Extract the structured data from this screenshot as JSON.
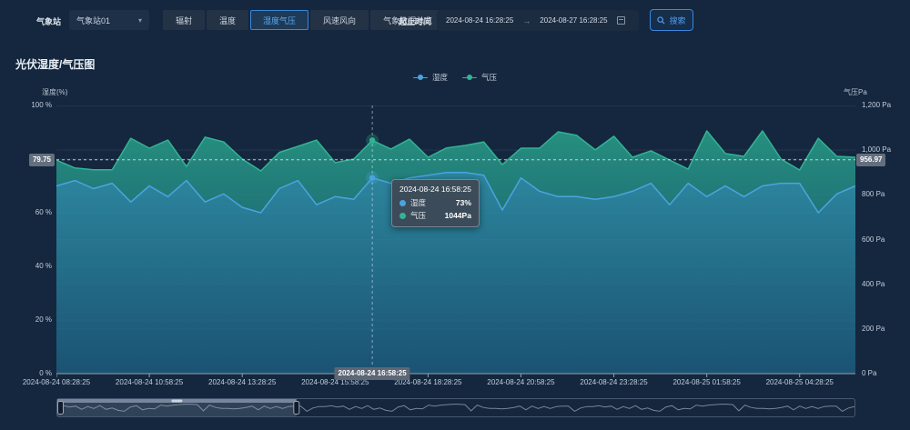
{
  "header": {
    "station_label": "气象站",
    "station_value": "气象站01",
    "nav_buttons": [
      {
        "label": "辐射",
        "active": false
      },
      {
        "label": "温度",
        "active": false
      },
      {
        "label": "湿度气压",
        "active": true
      },
      {
        "label": "风速风向",
        "active": false
      },
      {
        "label": "气象数据总览",
        "active": false
      }
    ],
    "range_label": "起止时间",
    "date_start": "2024-08-24 16:28:25",
    "date_end": "2024-08-27 16:28:25",
    "search_label": "搜索"
  },
  "chart_data": {
    "type": "area",
    "title": "光伏湿度/气压图",
    "x_tick_labels": [
      "2024-08-24 08:28:25",
      "2024-08-24 10:58:25",
      "2024-08-24 13:28:25",
      "2024-08-24 15:58:25",
      "2024-08-24 18:28:25",
      "2024-08-24 20:58:25",
      "2024-08-24 23:28:25",
      "2024-08-25 01:58:25",
      "2024-08-25 04:28:25"
    ],
    "x_tick_indices": [
      0,
      5,
      10,
      15,
      20,
      25,
      30,
      35,
      40
    ],
    "left_axis": {
      "name": "湿度(%)",
      "min": 0,
      "max": 100,
      "tick_values": [
        0,
        20,
        40,
        60,
        80,
        100
      ],
      "tick_labels": [
        "0 %",
        "20 %",
        "40 %",
        "60 %",
        "80 %",
        "100 %"
      ]
    },
    "right_axis": {
      "name": "气压Pa",
      "min": 0,
      "max": 1200,
      "tick_values": [
        0,
        200,
        400,
        600,
        800,
        1000,
        1200
      ],
      "tick_labels": [
        "0 Pa",
        "200 Pa",
        "400 Pa",
        "600 Pa",
        "800 Pa",
        "1,000 Pa",
        "1,200 Pa"
      ]
    },
    "series": [
      {
        "name": "湿度",
        "axis": "left",
        "color": "#4aa4e0",
        "values": [
          70,
          72,
          69,
          71,
          64,
          70,
          66,
          72,
          64,
          67,
          62,
          60,
          69,
          72,
          63,
          66,
          65,
          73,
          71,
          73,
          74,
          75,
          75,
          74,
          61,
          73,
          68,
          66,
          66,
          65,
          66,
          68,
          71,
          63,
          71,
          66,
          70,
          66,
          70,
          71,
          71,
          60,
          67,
          70
        ]
      },
      {
        "name": "气压",
        "axis": "right",
        "color": "#32b394",
        "values": [
          955,
          920,
          912,
          912,
          1053,
          1009,
          1045,
          927,
          1058,
          1037,
          960,
          907,
          990,
          1017,
          1045,
          944,
          960,
          1044,
          1005,
          1049,
          968,
          1010,
          1021,
          1037,
          935,
          1009,
          1009,
          1082,
          1066,
          1001,
          1062,
          968,
          997,
          956,
          915,
          1086,
          985,
          972,
          1086,
          960,
          911,
          1053,
          972,
          968
        ]
      }
    ],
    "tooltip": {
      "title": "2024-08-24 16:58:25",
      "point_index": 17,
      "rows": [
        {
          "name": "湿度",
          "value": "73%"
        },
        {
          "name": "气压",
          "value": "1044Pa"
        }
      ]
    },
    "axis_pointer": {
      "left_label": "79.75",
      "left_value": 79.75,
      "right_label": "956.97",
      "bottom_label": "2024-08-24 16:58:25"
    },
    "legend_position": "top-center",
    "grid": true
  },
  "slider": {
    "window_start": 0,
    "window_end": 0.3
  }
}
